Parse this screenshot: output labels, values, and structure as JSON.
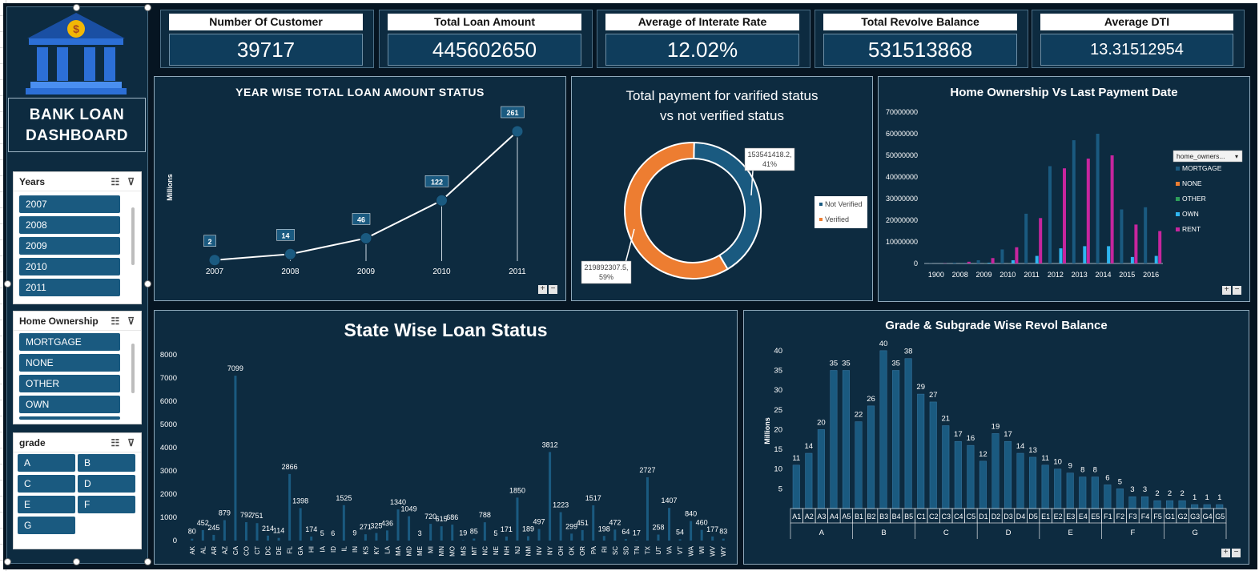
{
  "dashboard": {
    "title_line1": "BANK LOAN",
    "title_line2": "DASHBOARD",
    "logo_icon": "bank-dollar-icon"
  },
  "kpis": [
    {
      "label": "Number Of Customer",
      "value": "39717"
    },
    {
      "label": "Total Loan Amount",
      "value": "445602650"
    },
    {
      "label": "Average of Interate Rate",
      "value": "12.02%"
    },
    {
      "label": "Total Revolve Balance",
      "value": "531513868"
    },
    {
      "label": "Average DTI",
      "value": "13.31512954"
    }
  ],
  "slicers": {
    "years": {
      "title": "Years",
      "items": [
        "2007",
        "2008",
        "2009",
        "2010",
        "2011"
      ]
    },
    "home_ownership": {
      "title": "Home Ownership",
      "items": [
        "MORTGAGE",
        "NONE",
        "OTHER",
        "OWN"
      ]
    },
    "grade": {
      "title": "grade",
      "items": [
        "A",
        "B",
        "C",
        "D",
        "E",
        "F",
        "G"
      ]
    }
  },
  "zoom": {
    "plus": "+",
    "minus": "−"
  },
  "colors": {
    "accent_blue": "#1a5a80",
    "orange": "#ed7d31",
    "magenta": "#c7259e",
    "light_blue": "#2fb5f0",
    "green": "#2e9e5a"
  },
  "chart_data": [
    {
      "id": "year_wise",
      "type": "line",
      "title": "YEAR WISE TOTAL LOAN AMOUNT STATUS",
      "ylabel": "Millions",
      "categories": [
        "2007",
        "2008",
        "2009",
        "2010",
        "2011"
      ],
      "values": [
        2,
        14,
        46,
        122,
        261
      ],
      "ylim": [
        0,
        261
      ]
    },
    {
      "id": "verified_status",
      "type": "pie",
      "title_line1": "Total payment for varified status",
      "title_line2": "vs not verified status",
      "slices": [
        {
          "name": "Not Verified",
          "value": 153541418.2,
          "label_line1": "153541418.2,",
          "label_line2": "41%",
          "color": "#1a5a80"
        },
        {
          "name": "Verified",
          "value": 219892307.5,
          "label_line1": "219892307.5,",
          "label_line2": "59%",
          "color": "#ed7d31"
        }
      ]
    },
    {
      "id": "home_ownership_vs_payment",
      "type": "bar",
      "title": "Home Ownership Vs Last Payment Date",
      "legend_filter": "home_owners...",
      "categories": [
        "1900",
        "2008",
        "2009",
        "2010",
        "2011",
        "2012",
        "2013",
        "2014",
        "2015",
        "2016"
      ],
      "yticks": [
        "0",
        "10000000",
        "20000000",
        "30000000",
        "40000000",
        "50000000",
        "60000000",
        "70000000"
      ],
      "ylim": [
        0,
        70000000
      ],
      "series": [
        {
          "name": "MORTGAGE",
          "color": "#1a5a80",
          "values": [
            50000,
            400000,
            1500000,
            6500000,
            23000000,
            45000000,
            57000000,
            60000000,
            25000000,
            26000000
          ]
        },
        {
          "name": "NONE",
          "color": "#ed7d31",
          "values": [
            0,
            0,
            0,
            0,
            0,
            0,
            0,
            0,
            0,
            0
          ]
        },
        {
          "name": "OTHER",
          "color": "#2e9e5a",
          "values": [
            0,
            50000,
            80000,
            50000,
            0,
            0,
            0,
            0,
            0,
            0
          ]
        },
        {
          "name": "OWN",
          "color": "#2fb5f0",
          "values": [
            0,
            100000,
            300000,
            1500000,
            3500000,
            7000000,
            8000000,
            8000000,
            3000000,
            3500000
          ]
        },
        {
          "name": "RENT",
          "color": "#c7259e",
          "values": [
            100000,
            800000,
            2500000,
            7500000,
            21000000,
            44000000,
            48500000,
            50000000,
            18000000,
            15000000
          ]
        }
      ]
    },
    {
      "id": "state_wise",
      "type": "bar",
      "title": "State Wise Loan Status",
      "ylim": [
        0,
        8000
      ],
      "yticks": [
        "0",
        "1000",
        "2000",
        "3000",
        "4000",
        "5000",
        "6000",
        "7000",
        "8000"
      ],
      "categories": [
        "AK",
        "AL",
        "AR",
        "AZ",
        "CA",
        "CO",
        "CT",
        "DC",
        "DE",
        "FL",
        "GA",
        "HI",
        "IA",
        "ID",
        "IL",
        "IN",
        "KS",
        "KY",
        "LA",
        "MA",
        "MD",
        "ME",
        "MI",
        "MN",
        "MO",
        "MS",
        "MT",
        "NC",
        "NE",
        "NH",
        "NJ",
        "NM",
        "NV",
        "NY",
        "OH",
        "OK",
        "OR",
        "PA",
        "RI",
        "SC",
        "SD",
        "TN",
        "TX",
        "UT",
        "VA",
        "VT",
        "WA",
        "WI",
        "WV",
        "WY"
      ],
      "values": [
        80,
        452,
        245,
        879,
        7099,
        792,
        751,
        214,
        114,
        2866,
        1398,
        174,
        5,
        6,
        1525,
        9,
        271,
        325,
        436,
        1340,
        1049,
        3,
        720,
        615,
        686,
        19,
        85,
        788,
        5,
        171,
        1850,
        189,
        497,
        3812,
        1223,
        299,
        451,
        1517,
        198,
        472,
        64,
        17,
        2727,
        258,
        1407,
        54,
        840,
        460,
        177,
        83
      ]
    },
    {
      "id": "grade_subgrade",
      "type": "bar",
      "title": "Grade & Subgrade Wise Revol Balance",
      "ylabel": "Millions",
      "ylim": [
        0,
        42
      ],
      "yticks": [
        "5",
        "10",
        "15",
        "20",
        "25",
        "30",
        "35",
        "40"
      ],
      "categories": [
        "A1",
        "A2",
        "A3",
        "A4",
        "A5",
        "B1",
        "B2",
        "B3",
        "B4",
        "B5",
        "C1",
        "C2",
        "C3",
        "C4",
        "C5",
        "D1",
        "D2",
        "D3",
        "D4",
        "D5",
        "E1",
        "E2",
        "E3",
        "E4",
        "E5",
        "F1",
        "F2",
        "F3",
        "F4",
        "F5",
        "G1",
        "G2",
        "G3",
        "G4",
        "G5"
      ],
      "groups": [
        "A",
        "B",
        "C",
        "D",
        "E",
        "F",
        "G"
      ],
      "values": [
        11,
        14,
        20,
        35,
        35,
        22,
        26,
        40,
        35,
        38,
        29,
        27,
        21,
        17,
        16,
        12,
        19,
        17,
        14,
        13,
        11,
        10,
        9,
        8,
        8,
        6,
        5,
        3,
        3,
        2,
        2,
        2,
        1,
        1,
        1
      ]
    }
  ]
}
